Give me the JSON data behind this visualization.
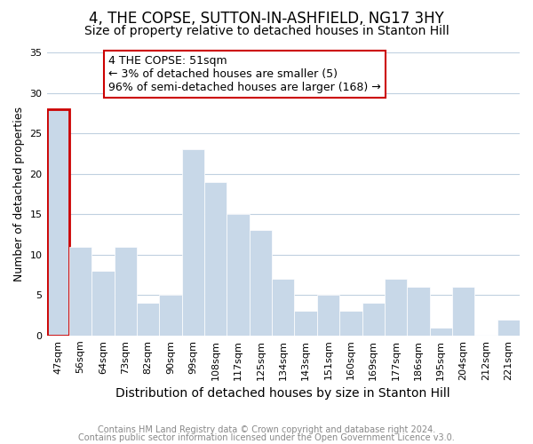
{
  "title": "4, THE COPSE, SUTTON-IN-ASHFIELD, NG17 3HY",
  "subtitle": "Size of property relative to detached houses in Stanton Hill",
  "xlabel": "Distribution of detached houses by size in Stanton Hill",
  "ylabel": "Number of detached properties",
  "bin_labels": [
    "47sqm",
    "56sqm",
    "64sqm",
    "73sqm",
    "82sqm",
    "90sqm",
    "99sqm",
    "108sqm",
    "117sqm",
    "125sqm",
    "134sqm",
    "143sqm",
    "151sqm",
    "160sqm",
    "169sqm",
    "177sqm",
    "186sqm",
    "195sqm",
    "204sqm",
    "212sqm",
    "221sqm"
  ],
  "bar_heights": [
    28,
    11,
    8,
    11,
    4,
    5,
    23,
    19,
    15,
    13,
    7,
    3,
    5,
    3,
    4,
    7,
    6,
    1,
    6,
    0,
    2
  ],
  "bar_color": "#c8d8e8",
  "highlight_bar_index": 0,
  "highlight_bar_edge_color": "#cc0000",
  "highlight_bar_linewidth": 2.0,
  "annotation_title": "4 THE COPSE: 51sqm",
  "annotation_line1": "← 3% of detached houses are smaller (5)",
  "annotation_line2": "96% of semi-detached houses are larger (168) →",
  "ylim": [
    0,
    35
  ],
  "yticks": [
    0,
    5,
    10,
    15,
    20,
    25,
    30,
    35
  ],
  "footer_line1": "Contains HM Land Registry data © Crown copyright and database right 2024.",
  "footer_line2": "Contains public sector information licensed under the Open Government Licence v3.0.",
  "background_color": "#ffffff",
  "grid_color": "#c0d0e0",
  "title_fontsize": 12,
  "subtitle_fontsize": 10,
  "xlabel_fontsize": 10,
  "ylabel_fontsize": 9,
  "footer_fontsize": 7,
  "annotation_fontsize": 9,
  "tick_fontsize": 8
}
